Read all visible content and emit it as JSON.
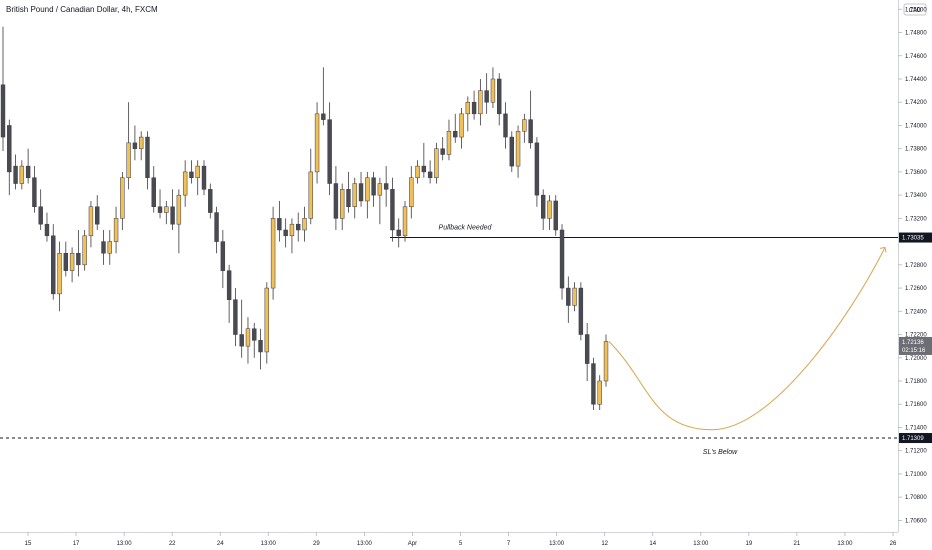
{
  "chart_data": {
    "type": "candlestick",
    "title": "British Pound / Canadian Dollar, 4h, FXCM",
    "currency": "CAD",
    "ylim": [
      1.705,
      1.7508
    ],
    "y_ticks": [
      "1.75000",
      "1.74800",
      "1.74600",
      "1.74400",
      "1.74200",
      "1.74000",
      "1.73800",
      "1.73600",
      "1.73400",
      "1.73200",
      "1.72800",
      "1.72600",
      "1.72400",
      "1.72200",
      "1.72000",
      "1.71800",
      "1.71600",
      "1.71400",
      "1.71200",
      "1.71000",
      "1.70800",
      "1.70600"
    ],
    "x_ticks": [
      "15",
      "17",
      "13:00",
      "22",
      "24",
      "13:00",
      "29",
      "13:00",
      "Apr",
      "5",
      "7",
      "13:00",
      "12",
      "14",
      "13:00",
      "19",
      "21",
      "13:00",
      "26"
    ],
    "bull_color": "#f0c05a",
    "bear_color": "#4a4a52",
    "candles": [
      [
        1.7435,
        1.7485,
        1.7378,
        1.739
      ],
      [
        1.74,
        1.7405,
        1.734,
        1.736
      ],
      [
        1.7365,
        1.7375,
        1.7345,
        1.735
      ],
      [
        1.735,
        1.737,
        1.7345,
        1.7365
      ],
      [
        1.7365,
        1.738,
        1.735,
        1.7355
      ],
      [
        1.7355,
        1.7365,
        1.7325,
        1.733
      ],
      [
        1.733,
        1.7345,
        1.731,
        1.7315
      ],
      [
        1.7315,
        1.7325,
        1.73,
        1.7305
      ],
      [
        1.7305,
        1.7315,
        1.725,
        1.7255
      ],
      [
        1.7255,
        1.73,
        1.724,
        1.729
      ],
      [
        1.729,
        1.73,
        1.727,
        1.7275
      ],
      [
        1.7275,
        1.7295,
        1.7265,
        1.729
      ],
      [
        1.729,
        1.731,
        1.727,
        1.728
      ],
      [
        1.728,
        1.731,
        1.7275,
        1.7305
      ],
      [
        1.7305,
        1.7335,
        1.7295,
        1.733
      ],
      [
        1.733,
        1.734,
        1.731,
        1.7315
      ],
      [
        1.73,
        1.731,
        1.728,
        1.729
      ],
      [
        1.729,
        1.731,
        1.728,
        1.73
      ],
      [
        1.73,
        1.733,
        1.729,
        1.732
      ],
      [
        1.732,
        1.736,
        1.731,
        1.7355
      ],
      [
        1.7355,
        1.742,
        1.7345,
        1.7385
      ],
      [
        1.7385,
        1.74,
        1.737,
        1.738
      ],
      [
        1.738,
        1.7395,
        1.737,
        1.739
      ],
      [
        1.739,
        1.7395,
        1.7345,
        1.7355
      ],
      [
        1.7355,
        1.7365,
        1.7325,
        1.733
      ],
      [
        1.733,
        1.7345,
        1.732,
        1.7325
      ],
      [
        1.7325,
        1.7335,
        1.7315,
        1.733
      ],
      [
        1.733,
        1.7345,
        1.731,
        1.7315
      ],
      [
        1.7315,
        1.7345,
        1.729,
        1.734
      ],
      [
        1.734,
        1.737,
        1.733,
        1.736
      ],
      [
        1.736,
        1.737,
        1.735,
        1.7355
      ],
      [
        1.7355,
        1.737,
        1.734,
        1.7365
      ],
      [
        1.7365,
        1.737,
        1.734,
        1.7345
      ],
      [
        1.7345,
        1.735,
        1.732,
        1.7325
      ],
      [
        1.7325,
        1.733,
        1.729,
        1.73
      ],
      [
        1.73,
        1.731,
        1.726,
        1.7275
      ],
      [
        1.7275,
        1.728,
        1.723,
        1.725
      ],
      [
        1.725,
        1.726,
        1.721,
        1.722
      ],
      [
        1.722,
        1.725,
        1.72,
        1.721
      ],
      [
        1.721,
        1.7235,
        1.7195,
        1.7225
      ],
      [
        1.7225,
        1.723,
        1.72,
        1.7215
      ],
      [
        1.7215,
        1.7225,
        1.719,
        1.7205
      ],
      [
        1.7205,
        1.7265,
        1.7195,
        1.726
      ],
      [
        1.726,
        1.733,
        1.725,
        1.732
      ],
      [
        1.732,
        1.7335,
        1.73,
        1.731
      ],
      [
        1.731,
        1.732,
        1.7295,
        1.7305
      ],
      [
        1.7305,
        1.732,
        1.729,
        1.7315
      ],
      [
        1.7315,
        1.7325,
        1.73,
        1.731
      ],
      [
        1.731,
        1.733,
        1.73,
        1.732
      ],
      [
        1.732,
        1.738,
        1.7315,
        1.736
      ],
      [
        1.736,
        1.742,
        1.735,
        1.741
      ],
      [
        1.741,
        1.745,
        1.74,
        1.7405
      ],
      [
        1.7405,
        1.742,
        1.734,
        1.735
      ],
      [
        1.735,
        1.7365,
        1.731,
        1.732
      ],
      [
        1.732,
        1.735,
        1.731,
        1.7345
      ],
      [
        1.7345,
        1.736,
        1.7325,
        1.733
      ],
      [
        1.733,
        1.7355,
        1.732,
        1.735
      ],
      [
        1.735,
        1.736,
        1.733,
        1.7335
      ],
      [
        1.7335,
        1.736,
        1.732,
        1.7355
      ],
      [
        1.7355,
        1.736,
        1.733,
        1.734
      ],
      [
        1.734,
        1.7355,
        1.7315,
        1.735
      ],
      [
        1.735,
        1.7365,
        1.733,
        1.7345
      ],
      [
        1.7345,
        1.7355,
        1.73,
        1.731
      ],
      [
        1.731,
        1.732,
        1.7295,
        1.7305
      ],
      [
        1.7305,
        1.7335,
        1.73,
        1.733
      ],
      [
        1.733,
        1.7365,
        1.732,
        1.7355
      ],
      [
        1.7355,
        1.737,
        1.735,
        1.7365
      ],
      [
        1.7365,
        1.7385,
        1.7355,
        1.736
      ],
      [
        1.736,
        1.737,
        1.735,
        1.7355
      ],
      [
        1.7355,
        1.7385,
        1.735,
        1.738
      ],
      [
        1.738,
        1.739,
        1.737,
        1.7375
      ],
      [
        1.7375,
        1.7405,
        1.737,
        1.7395
      ],
      [
        1.7395,
        1.741,
        1.7385,
        1.739
      ],
      [
        1.739,
        1.7415,
        1.738,
        1.741
      ],
      [
        1.741,
        1.7425,
        1.7395,
        1.742
      ],
      [
        1.742,
        1.743,
        1.7405,
        1.741
      ],
      [
        1.741,
        1.744,
        1.74,
        1.743
      ],
      [
        1.743,
        1.7445,
        1.741,
        1.742
      ],
      [
        1.742,
        1.745,
        1.7415,
        1.744
      ],
      [
        1.744,
        1.7445,
        1.74,
        1.741
      ],
      [
        1.741,
        1.742,
        1.738,
        1.739
      ],
      [
        1.739,
        1.7395,
        1.736,
        1.7365
      ],
      [
        1.7365,
        1.74,
        1.7355,
        1.7395
      ],
      [
        1.7395,
        1.741,
        1.7385,
        1.7405
      ],
      [
        1.7405,
        1.743,
        1.738,
        1.7385
      ],
      [
        1.7385,
        1.739,
        1.733,
        1.734
      ],
      [
        1.734,
        1.7345,
        1.731,
        1.732
      ],
      [
        1.732,
        1.734,
        1.731,
        1.7335
      ],
      [
        1.7335,
        1.734,
        1.7305,
        1.731
      ],
      [
        1.731,
        1.7315,
        1.725,
        1.726
      ],
      [
        1.726,
        1.727,
        1.723,
        1.7245
      ],
      [
        1.7245,
        1.7265,
        1.724,
        1.726
      ],
      [
        1.726,
        1.7265,
        1.7215,
        1.722
      ],
      [
        1.722,
        1.723,
        1.718,
        1.7195
      ],
      [
        1.7195,
        1.72,
        1.7155,
        1.716
      ],
      [
        1.716,
        1.7185,
        1.7155,
        1.718
      ],
      [
        1.718,
        1.722,
        1.7175,
        1.7214
      ]
    ],
    "lines": [
      {
        "label": "Pullback Needed",
        "price": 1.73035,
        "price_label": "1.73035",
        "style": "solid"
      },
      {
        "label": "SL's Below",
        "price": 1.71309,
        "price_label": "1.71309",
        "style": "dashed"
      }
    ],
    "current_price": {
      "price": 1.72136,
      "price_label": "1.72136",
      "countdown": "02:15:16"
    },
    "projection": {
      "type": "curve",
      "from": [
        1.7214
      ],
      "low": 1.7138,
      "to_price": 1.7295
    }
  }
}
